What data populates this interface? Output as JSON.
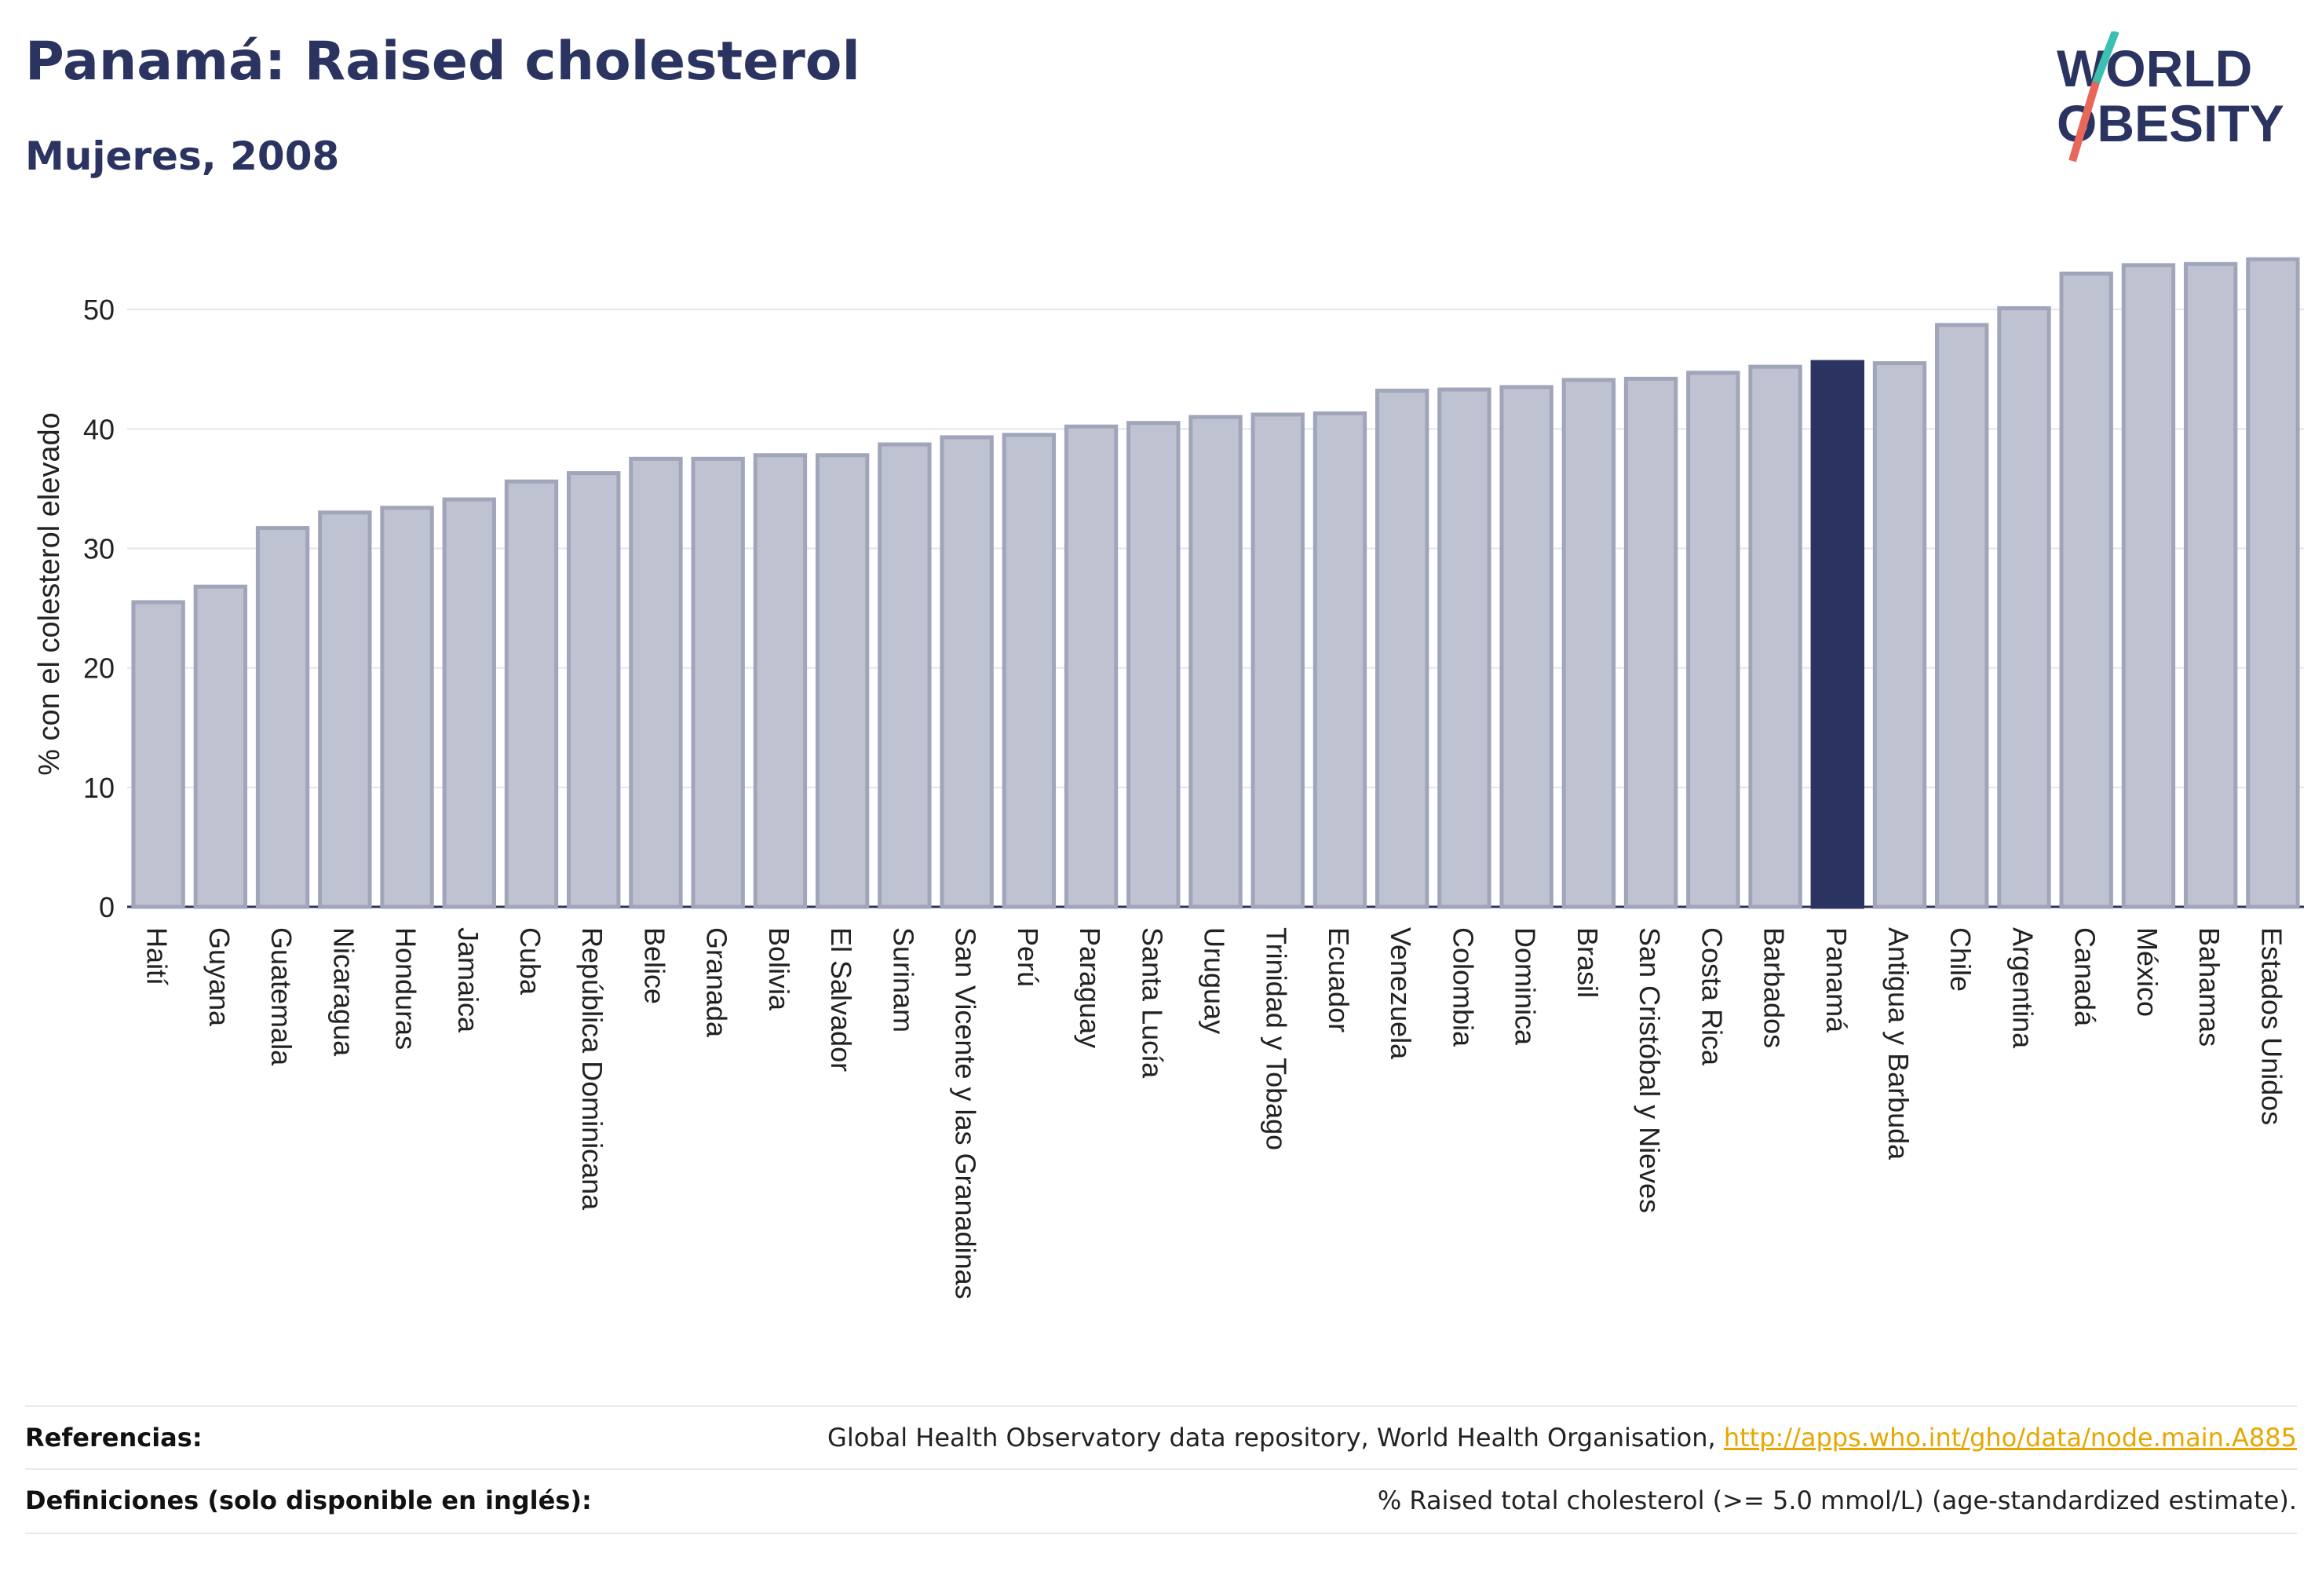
{
  "header": {
    "title": "Panamá: Raised cholesterol",
    "subtitle": "Mujeres, 2008"
  },
  "logo": {
    "line1": "WORLD",
    "line2": "OBESITY"
  },
  "colors": {
    "bar": "#bfc2d0",
    "bar_border": "#a0a5ba",
    "highlight": "#2b3461",
    "text": "#2b3461",
    "link": "#e6a700",
    "logo_slash_top": "#3bbfb0",
    "logo_slash_bottom": "#e8675a"
  },
  "chart_data": {
    "type": "bar",
    "title": "Panamá: Raised cholesterol",
    "subtitle": "Mujeres, 2008",
    "ylabel": "% con el colesterol elevado",
    "xlabel": "",
    "ylim": [
      0,
      55
    ],
    "yticks": [
      0,
      10,
      20,
      30,
      40,
      50
    ],
    "grid": true,
    "highlight": "Panamá",
    "categories": [
      "Haití",
      "Guyana",
      "Guatemala",
      "Nicaragua",
      "Honduras",
      "Jamaica",
      "Cuba",
      "República Dominicana",
      "Belice",
      "Granada",
      "Bolivia",
      "El Salvador",
      "Surinam",
      "San Vicente y las Granadinas",
      "Perú",
      "Paraguay",
      "Santa Lucía",
      "Uruguay",
      "Trinidad y Tobago",
      "Ecuador",
      "Venezuela",
      "Colombia",
      "Dominica",
      "Brasil",
      "San Cristóbal y Nieves",
      "Costa Rica",
      "Barbados",
      "Panamá",
      "Antigua y Barbuda",
      "Chile",
      "Argentina",
      "Canadá",
      "México",
      "Bahamas",
      "Estados Unidos"
    ],
    "values": [
      25.5,
      26.8,
      31.7,
      33.0,
      33.4,
      34.1,
      35.6,
      36.3,
      37.5,
      37.5,
      37.8,
      37.8,
      38.7,
      39.3,
      39.5,
      40.2,
      40.5,
      41.0,
      41.2,
      41.3,
      43.2,
      43.3,
      43.5,
      44.1,
      44.2,
      44.7,
      45.2,
      45.6,
      45.5,
      48.7,
      50.1,
      53.0,
      53.7,
      53.8,
      54.2
    ]
  },
  "footer": {
    "references_label": "Referencias:",
    "references_text": "Global Health Observatory data repository, World Health Organisation, ",
    "references_link": "http://apps.who.int/gho/data/node.main.A885",
    "definitions_label": "Definiciones (solo disponible en inglés):",
    "definitions_text": "% Raised total cholesterol (>= 5.0 mmol/L) (age-standardized estimate)."
  }
}
